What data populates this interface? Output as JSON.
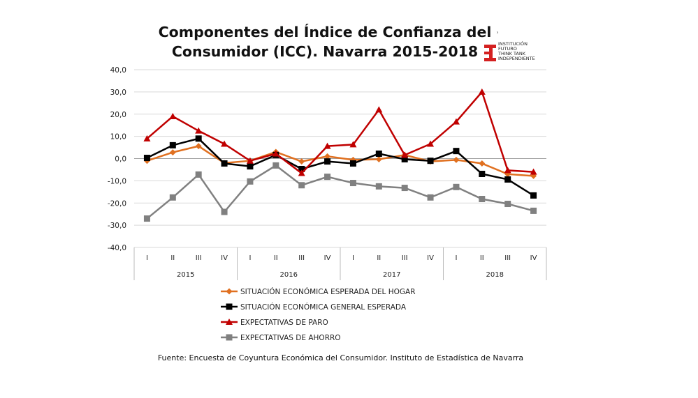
{
  "chart_data": {
    "type": "line",
    "title": "Componentes del Índice de Confianza del Consumidor (ICC). Navarra 2015-2018",
    "ylim": [
      -40,
      40
    ],
    "yticks": [
      "40,0",
      "30,0",
      "20,0",
      "10,0",
      "0,0",
      "-10,0",
      "-20,0",
      "-30,0",
      "-40,0"
    ],
    "ytick_values": [
      40,
      30,
      20,
      10,
      0,
      -10,
      -20,
      -30,
      -40
    ],
    "quarters": [
      "I",
      "II",
      "III",
      "IV",
      "I",
      "II",
      "III",
      "IV",
      "I",
      "II",
      "III",
      "IV",
      "I",
      "II",
      "III",
      "IV"
    ],
    "years": [
      "2015",
      "2016",
      "2017",
      "2018"
    ],
    "grid": true,
    "legend_position": "bottom",
    "series": [
      {
        "name": "SITUACIÓN ECONÓMICA ESPERADA DEL HOGAR",
        "color": "#E07020",
        "marker": "diamond",
        "values": [
          -1,
          2.8,
          5.6,
          -2,
          -1,
          3,
          -1.3,
          1,
          -0.6,
          -0.3,
          1.6,
          -1.3,
          -0.6,
          -2.2,
          -7,
          -7.8
        ]
      },
      {
        "name": "SITUACIÓN ECONÓMICA GENERAL ESPERADA",
        "color": "#000000",
        "marker": "square",
        "values": [
          0.3,
          6,
          9,
          -2.2,
          -3.5,
          1.6,
          -4.7,
          -1.3,
          -2.2,
          2.2,
          -0.3,
          -1,
          3.4,
          -6.9,
          -9.4,
          -16.6
        ]
      },
      {
        "name": "EXPECTATIVAS DE PARO",
        "color": "#C00000",
        "marker": "triangle",
        "values": [
          9,
          19,
          12.5,
          6.6,
          -1,
          2.2,
          -6.6,
          5.6,
          6.3,
          22,
          1.6,
          6.6,
          16.6,
          30,
          -5.3,
          -6
        ]
      },
      {
        "name": "EXPECTATIVAS DE AHORRO",
        "color": "#808080",
        "marker": "square",
        "values": [
          -27,
          -17.5,
          -7.2,
          -24,
          -10.3,
          -3.1,
          -12,
          -8.2,
          -11,
          -12.5,
          -13.2,
          -17.5,
          -12.8,
          -18.2,
          -20.4,
          -23.5
        ]
      }
    ]
  },
  "title_line1": "Componentes del Índice de Confianza del",
  "title_line2": "Consumidor (ICC). Navarra 2015-2018",
  "logo_text": [
    "INSTITUCIÓN",
    "FUTURO",
    "THINK TANK",
    "INDEPENDIENTE"
  ],
  "source": "Fuente: Encuesta de Coyuntura Económica del Consumidor. Instituto de Estadística de Navarra"
}
